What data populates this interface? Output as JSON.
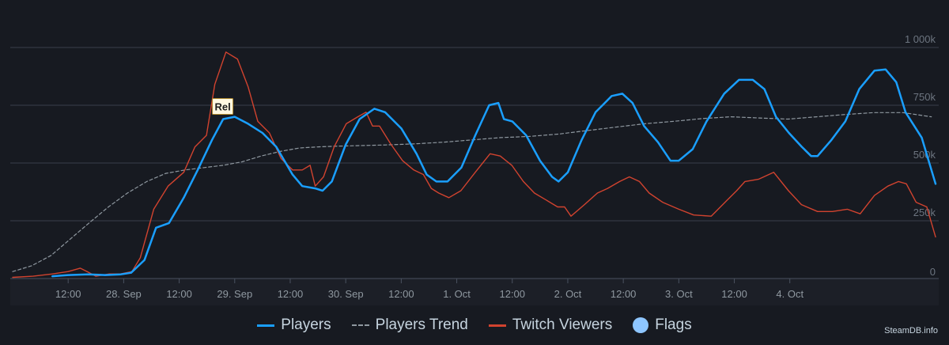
{
  "chart_data": {
    "type": "line",
    "x_unit": "hours since 27 Sep 00:00",
    "xlim": [
      0,
      199.5
    ],
    "ylim": [
      0,
      1000000
    ],
    "y_ticks": [
      {
        "value": 0,
        "label": "0"
      },
      {
        "value": 250000,
        "label": "250k"
      },
      {
        "value": 500000,
        "label": "500k"
      },
      {
        "value": 750000,
        "label": "750k"
      },
      {
        "value": 1000000,
        "label": "1 000k"
      }
    ],
    "x_ticks": [
      {
        "value": 12,
        "label": "12:00"
      },
      {
        "value": 24,
        "label": "28. Sep"
      },
      {
        "value": 36,
        "label": "12:00"
      },
      {
        "value": 48,
        "label": "29. Sep"
      },
      {
        "value": 60,
        "label": "12:00"
      },
      {
        "value": 72,
        "label": "30. Sep"
      },
      {
        "value": 84,
        "label": "12:00"
      },
      {
        "value": 96,
        "label": "1. Oct"
      },
      {
        "value": 108,
        "label": "12:00"
      },
      {
        "value": 120,
        "label": "2. Oct"
      },
      {
        "value": 132,
        "label": "12:00"
      },
      {
        "value": 144,
        "label": "3. Oct"
      },
      {
        "value": 156,
        "label": "12:00"
      },
      {
        "value": 168,
        "label": "4. Oct"
      }
    ],
    "series": [
      {
        "name": "Players",
        "color": "#1a9fff",
        "style": "solid",
        "points": [
          [
            8.6,
            10000
          ],
          [
            12,
            15000
          ],
          [
            16.3,
            18000
          ],
          [
            20,
            15000
          ],
          [
            23.4,
            18000
          ],
          [
            25.6,
            25000
          ],
          [
            28.5,
            80000
          ],
          [
            31,
            220000
          ],
          [
            33.8,
            240000
          ],
          [
            37,
            350000
          ],
          [
            40,
            470000
          ],
          [
            43.1,
            600000
          ],
          [
            45.5,
            690000
          ],
          [
            48,
            700000
          ],
          [
            50.9,
            670000
          ],
          [
            54,
            630000
          ],
          [
            57,
            570000
          ],
          [
            60.5,
            450000
          ],
          [
            62.6,
            400000
          ],
          [
            65.4,
            390000
          ],
          [
            67,
            380000
          ],
          [
            69,
            420000
          ],
          [
            72,
            580000
          ],
          [
            75,
            690000
          ],
          [
            78.2,
            735000
          ],
          [
            80.5,
            720000
          ],
          [
            84,
            650000
          ],
          [
            87.3,
            540000
          ],
          [
            89.5,
            450000
          ],
          [
            91.6,
            420000
          ],
          [
            94,
            420000
          ],
          [
            97,
            480000
          ],
          [
            100,
            620000
          ],
          [
            103,
            750000
          ],
          [
            105,
            760000
          ],
          [
            106.2,
            690000
          ],
          [
            108,
            680000
          ],
          [
            111,
            620000
          ],
          [
            114,
            510000
          ],
          [
            116.6,
            440000
          ],
          [
            118,
            420000
          ],
          [
            120,
            460000
          ],
          [
            123,
            600000
          ],
          [
            126,
            720000
          ],
          [
            129.5,
            790000
          ],
          [
            131.8,
            800000
          ],
          [
            134,
            760000
          ],
          [
            136.5,
            660000
          ],
          [
            139.5,
            590000
          ],
          [
            142.2,
            510000
          ],
          [
            144,
            510000
          ],
          [
            147,
            560000
          ],
          [
            150,
            680000
          ],
          [
            153.8,
            800000
          ],
          [
            157,
            860000
          ],
          [
            160,
            860000
          ],
          [
            162.5,
            820000
          ],
          [
            165,
            700000
          ],
          [
            167.8,
            630000
          ],
          [
            170.6,
            570000
          ],
          [
            172.6,
            530000
          ],
          [
            174,
            530000
          ],
          [
            177,
            600000
          ],
          [
            180,
            680000
          ],
          [
            183,
            820000
          ],
          [
            186.3,
            900000
          ],
          [
            188.7,
            905000
          ],
          [
            191,
            850000
          ],
          [
            193,
            720000
          ],
          [
            196.5,
            610000
          ],
          [
            199.5,
            410000
          ]
        ]
      },
      {
        "name": "Players Trend",
        "color": "#8f98a0",
        "style": "dashed",
        "points": [
          [
            0,
            30000
          ],
          [
            4.1,
            55000
          ],
          [
            8.3,
            100000
          ],
          [
            12.4,
            170000
          ],
          [
            16.5,
            240000
          ],
          [
            20.7,
            310000
          ],
          [
            24.8,
            370000
          ],
          [
            29,
            420000
          ],
          [
            33.1,
            455000
          ],
          [
            37.3,
            470000
          ],
          [
            41.4,
            480000
          ],
          [
            45.5,
            490000
          ],
          [
            49.6,
            505000
          ],
          [
            53.7,
            530000
          ],
          [
            57.8,
            550000
          ],
          [
            62,
            565000
          ],
          [
            66.1,
            570000
          ],
          [
            70.3,
            573000
          ],
          [
            74.4,
            575000
          ],
          [
            80.6,
            578000
          ],
          [
            86.9,
            583000
          ],
          [
            93.1,
            590000
          ],
          [
            99.3,
            600000
          ],
          [
            105.5,
            610000
          ],
          [
            111.7,
            615000
          ],
          [
            117.9,
            625000
          ],
          [
            124.1,
            640000
          ],
          [
            130.3,
            655000
          ],
          [
            136.6,
            670000
          ],
          [
            142.8,
            680000
          ],
          [
            149,
            692000
          ],
          [
            155.2,
            700000
          ],
          [
            161.4,
            695000
          ],
          [
            167.6,
            690000
          ],
          [
            173.8,
            700000
          ],
          [
            180,
            710000
          ],
          [
            186.2,
            718000
          ],
          [
            192.4,
            718000
          ],
          [
            198.6,
            700000
          ]
        ]
      },
      {
        "name": "Twitch Viewers",
        "color": "#d1432f",
        "style": "solid",
        "points": [
          [
            0,
            5000
          ],
          [
            4.4,
            10000
          ],
          [
            8.6,
            20000
          ],
          [
            12,
            30000
          ],
          [
            14.6,
            45000
          ],
          [
            16.1,
            30000
          ],
          [
            18,
            10000
          ],
          [
            20.9,
            20000
          ],
          [
            23.3,
            20000
          ],
          [
            25.8,
            30000
          ],
          [
            27.6,
            90000
          ],
          [
            30.5,
            300000
          ],
          [
            33.6,
            400000
          ],
          [
            37,
            460000
          ],
          [
            39.4,
            570000
          ],
          [
            41.9,
            620000
          ],
          [
            43.7,
            840000
          ],
          [
            46.1,
            980000
          ],
          [
            48.6,
            950000
          ],
          [
            50.9,
            830000
          ],
          [
            53,
            680000
          ],
          [
            55.5,
            630000
          ],
          [
            58,
            520000
          ],
          [
            60.5,
            470000
          ],
          [
            62.6,
            470000
          ],
          [
            64.3,
            490000
          ],
          [
            65.4,
            400000
          ],
          [
            67.2,
            440000
          ],
          [
            69.5,
            570000
          ],
          [
            72.1,
            670000
          ],
          [
            74.6,
            700000
          ],
          [
            76.4,
            720000
          ],
          [
            77.8,
            660000
          ],
          [
            79.3,
            660000
          ],
          [
            81.8,
            580000
          ],
          [
            84.3,
            510000
          ],
          [
            86.7,
            470000
          ],
          [
            88.8,
            450000
          ],
          [
            90.5,
            390000
          ],
          [
            92.1,
            370000
          ],
          [
            94.3,
            350000
          ],
          [
            96.9,
            380000
          ],
          [
            100,
            460000
          ],
          [
            103.2,
            540000
          ],
          [
            105.4,
            530000
          ],
          [
            107.9,
            490000
          ],
          [
            110.4,
            420000
          ],
          [
            112.8,
            370000
          ],
          [
            115.3,
            340000
          ],
          [
            117.8,
            310000
          ],
          [
            119.3,
            310000
          ],
          [
            120.7,
            270000
          ],
          [
            123.6,
            320000
          ],
          [
            126.4,
            370000
          ],
          [
            128.6,
            390000
          ],
          [
            131.2,
            420000
          ],
          [
            133.3,
            440000
          ],
          [
            135.5,
            420000
          ],
          [
            137.6,
            370000
          ],
          [
            140.5,
            330000
          ],
          [
            144,
            300000
          ],
          [
            147.2,
            275000
          ],
          [
            151,
            270000
          ],
          [
            154,
            330000
          ],
          [
            156.5,
            380000
          ],
          [
            158.3,
            420000
          ],
          [
            161.3,
            430000
          ],
          [
            164.5,
            460000
          ],
          [
            167.7,
            380000
          ],
          [
            170.5,
            320000
          ],
          [
            174,
            290000
          ],
          [
            177.2,
            290000
          ],
          [
            180.4,
            300000
          ],
          [
            183.2,
            280000
          ],
          [
            186.3,
            360000
          ],
          [
            189.2,
            400000
          ],
          [
            191.5,
            420000
          ],
          [
            193.2,
            410000
          ],
          [
            195.3,
            330000
          ],
          [
            197.6,
            310000
          ],
          [
            199.5,
            180000
          ]
        ]
      }
    ],
    "annotations": [
      {
        "label": "Rel",
        "x": 45.4,
        "y": 745000,
        "type": "flag"
      }
    ],
    "legend": {
      "position": "bottom-center",
      "items": [
        {
          "label": "Players",
          "kind": "line",
          "color": "#1a9fff"
        },
        {
          "label": "Players Trend",
          "kind": "dashed",
          "color": "#8f98a0"
        },
        {
          "label": "Twitch Viewers",
          "kind": "line",
          "color": "#d1432f"
        },
        {
          "label": "Flags",
          "kind": "dot",
          "color": "#8ec6ff"
        }
      ]
    },
    "gridlines": true
  },
  "credit": "SteamDB.info"
}
